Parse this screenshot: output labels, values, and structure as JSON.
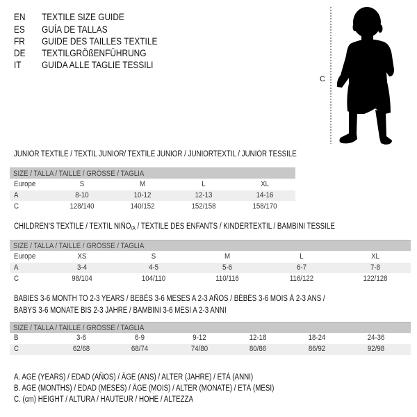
{
  "languages": [
    {
      "code": "EN",
      "label": "TEXTILE SIZE GUIDE"
    },
    {
      "code": "ES",
      "label": "GUÍA DE TALLAS"
    },
    {
      "code": "FR",
      "label": "GUIDE DES TAILLES TEXTILE"
    },
    {
      "code": "DE",
      "label": "TEXTILGRÖßENFÜHRUNG"
    },
    {
      "code": "IT",
      "label": "GUIDA ALLE TAGLIE TESSILI"
    }
  ],
  "figure": {
    "measure_label": "C",
    "icon": "child-silhouette"
  },
  "junior": {
    "title": "JUNIOR TEXTILE / TEXTIL JUNIOR/ TEXTILE JUNIOR / JUNIORTEXTIL / JUNIOR TESSILE",
    "header": "SIZE / TALLA / TAILLE / GRÖSSE / TAGLIA",
    "rows": [
      {
        "label": "Europe",
        "values": [
          "S",
          "M",
          "L",
          "XL"
        ]
      },
      {
        "label": "A",
        "values": [
          "8-10",
          "10-12",
          "12-13",
          "14-16"
        ]
      },
      {
        "label": "C",
        "values": [
          "128/140",
          "140/152",
          "152/158",
          "158/170"
        ]
      }
    ]
  },
  "children": {
    "title": "CHILDREN'S TEXTILE / TEXTIL NIÑO",
    "title_sub": "/A",
    "title_rest": " / TEXTILE DES ENFANTS / KINDERTEXTIL / BAMBINI TESSILE",
    "header": "SIZE / TALLA / TAILLE / GRÖSSE / TAGLIA",
    "rows": [
      {
        "label": "Europe",
        "values": [
          "XS",
          "S",
          "M",
          "L",
          "XL"
        ]
      },
      {
        "label": "A",
        "values": [
          "3-4",
          "4-5",
          "5-6",
          "6-7",
          "7-8"
        ]
      },
      {
        "label": "C",
        "values": [
          "98/104",
          "104/110",
          "110/116",
          "116/122",
          "122/128"
        ]
      }
    ]
  },
  "babies": {
    "title_line1": "BABIES 3-6 MONTH TO 2-3 YEARS / BEBÉS 3-6 MESES A 2-3 AÑOS / BÉBÉS 3-6 MOIS À 2-3 ANS /",
    "title_line2": "BABYS 3-6 MONATE BIS 2-3 JAHRE / BAMBINI 3-6 MESI A 2-3 ANNI",
    "header": "SIZE / TALLA / TAILLE / GRÖSSE / TAGLIA",
    "rows": [
      {
        "label": "B",
        "values": [
          "3-6",
          "6-9",
          "9-12",
          "12-18",
          "18-24",
          "24-36"
        ]
      },
      {
        "label": "C",
        "values": [
          "62/68",
          "68/74",
          "74/80",
          "80/86",
          "86/92",
          "92/98"
        ]
      }
    ]
  },
  "legend": [
    "A. AGE (YEARS) / EDAD (AÑOS) / ÂGE (ANS) / ALTER (JAHRE) / ETÀ (ANNI)",
    "B. AGE (MONTHS) / EDAD (MESES) / ÂGE (MOIS) / ALTER (MONATE) / ETÀ (MESI)",
    "C. (cm) HEIGHT / ALTURA / HAUTEUR / HÖHE / ALTEZZA"
  ]
}
